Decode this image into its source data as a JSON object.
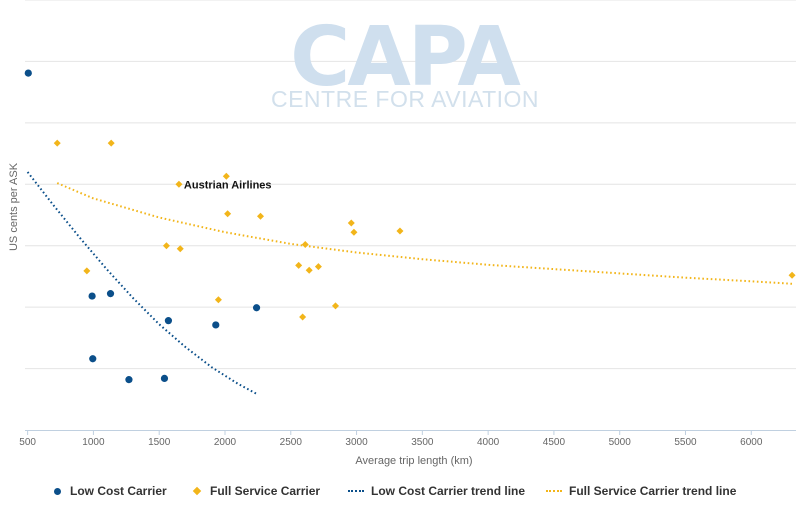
{
  "watermark": {
    "title": "CAPA",
    "subtitle": "CENTRE FOR AVIATION"
  },
  "colors": {
    "low_cost": "#0b4f8a",
    "full_service": "#f2b51a",
    "grid": "#e4e4e4",
    "axis": "#c0d0e0"
  },
  "chart_data": {
    "type": "scatter",
    "xlabel": "Average trip length (km)",
    "ylabel": "US cents per ASK",
    "x_ticks": [
      500,
      1000,
      1500,
      2000,
      2500,
      3000,
      3500,
      4000,
      4500,
      5000,
      5500,
      6000
    ],
    "xlim": [
      480,
      6340
    ],
    "ylim": [
      0,
      7
    ],
    "grid": true,
    "legend_position": "bottom",
    "series": [
      {
        "name": "Low Cost Carrier",
        "marker": "circle",
        "points": [
          [
            505,
            5.81
          ],
          [
            990,
            2.18
          ],
          [
            995,
            1.16
          ],
          [
            1130,
            2.22
          ],
          [
            1270,
            0.82
          ],
          [
            1540,
            0.84
          ],
          [
            1570,
            1.78
          ],
          [
            1930,
            1.71
          ],
          [
            2240,
            1.99
          ]
        ]
      },
      {
        "name": "Full Service Carrier",
        "marker": "diamond",
        "points": [
          [
            725,
            4.67
          ],
          [
            950,
            2.59
          ],
          [
            1135,
            4.67
          ],
          [
            1555,
            3.0
          ],
          [
            1650,
            4.0
          ],
          [
            1660,
            2.95
          ],
          [
            1950,
            2.12
          ],
          [
            2010,
            4.13
          ],
          [
            2020,
            3.52
          ],
          [
            2270,
            3.48
          ],
          [
            2560,
            2.68
          ],
          [
            2590,
            1.84
          ],
          [
            2610,
            3.02
          ],
          [
            2640,
            2.6
          ],
          [
            2710,
            2.66
          ],
          [
            2840,
            2.02
          ],
          [
            2960,
            3.37
          ],
          [
            2980,
            3.22
          ],
          [
            3330,
            3.24
          ],
          [
            6310,
            2.52
          ]
        ]
      },
      {
        "name": "Low Cost Carrier trend line",
        "style": "dotted",
        "points": [
          [
            500,
            4.2
          ],
          [
            700,
            3.65
          ],
          [
            900,
            3.12
          ],
          [
            1100,
            2.62
          ],
          [
            1300,
            2.15
          ],
          [
            1500,
            1.72
          ],
          [
            1700,
            1.35
          ],
          [
            1900,
            1.02
          ],
          [
            2100,
            0.75
          ],
          [
            2240,
            0.59
          ]
        ]
      },
      {
        "name": "Full Service Carrier trend line",
        "style": "dotted",
        "points": [
          [
            725,
            4.02
          ],
          [
            1000,
            3.77
          ],
          [
            1500,
            3.46
          ],
          [
            2000,
            3.22
          ],
          [
            2500,
            3.03
          ],
          [
            3000,
            2.89
          ],
          [
            3500,
            2.78
          ],
          [
            4000,
            2.69
          ],
          [
            4500,
            2.62
          ],
          [
            5000,
            2.55
          ],
          [
            5500,
            2.48
          ],
          [
            6000,
            2.42
          ],
          [
            6310,
            2.38
          ]
        ]
      }
    ],
    "annotations": [
      {
        "text": "Austrian Airlines",
        "x": 1650,
        "y": 4.0
      }
    ]
  },
  "legend": [
    {
      "label": "Low Cost Carrier",
      "symbol": "circle",
      "color": "#0b4f8a"
    },
    {
      "label": "Full Service Carrier",
      "symbol": "diamond",
      "color": "#f2b51a"
    },
    {
      "label": "Low Cost Carrier trend line",
      "symbol": "dotted-line",
      "color": "#0b4f8a"
    },
    {
      "label": "Full Service Carrier trend line",
      "symbol": "dotted-line",
      "color": "#f2b51a"
    }
  ]
}
